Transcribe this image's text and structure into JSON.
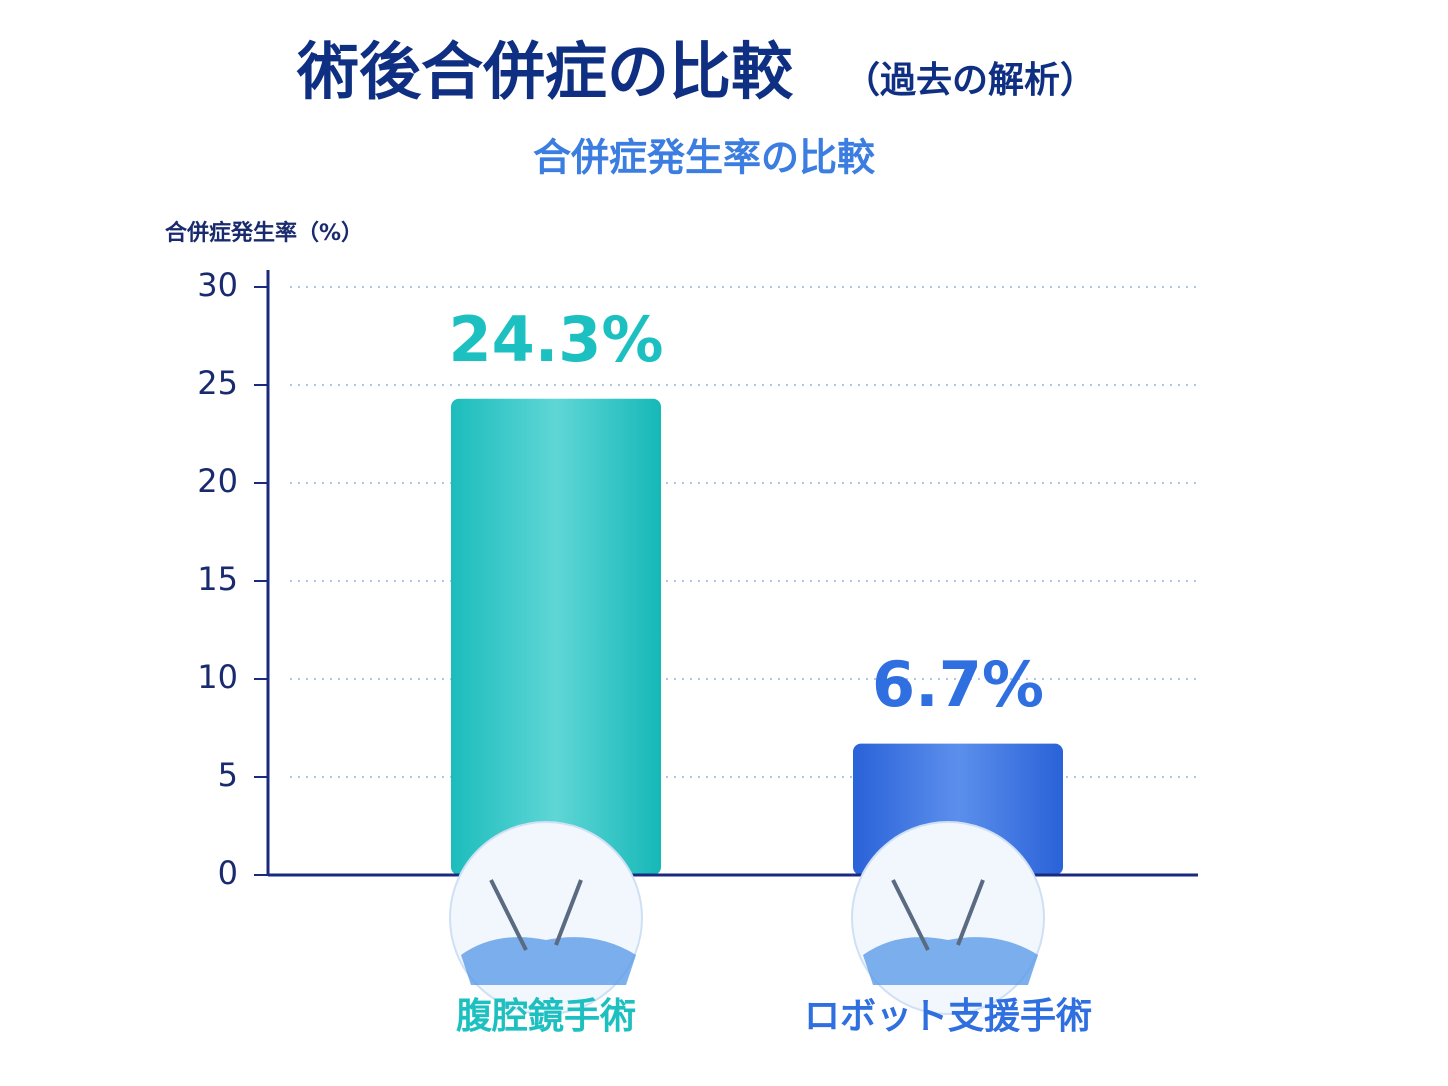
{
  "chart_data": {
    "type": "bar",
    "title": "術後合併症の比較",
    "title_note": "（過去の解析）",
    "subtitle": "合併症発生率の比較",
    "y_label": "合併症発生率（%）",
    "categories": [
      "腹腔鏡手術",
      "ロボット支援手術"
    ],
    "values": [
      24.3,
      6.7
    ],
    "value_labels": [
      "24.3%",
      "6.7%"
    ],
    "colors": [
      "#1dc0c0",
      "#2f6fe0"
    ],
    "ylim": [
      0,
      30
    ],
    "yticks": [
      0,
      5,
      10,
      15,
      20,
      25,
      30
    ],
    "grid": true
  }
}
